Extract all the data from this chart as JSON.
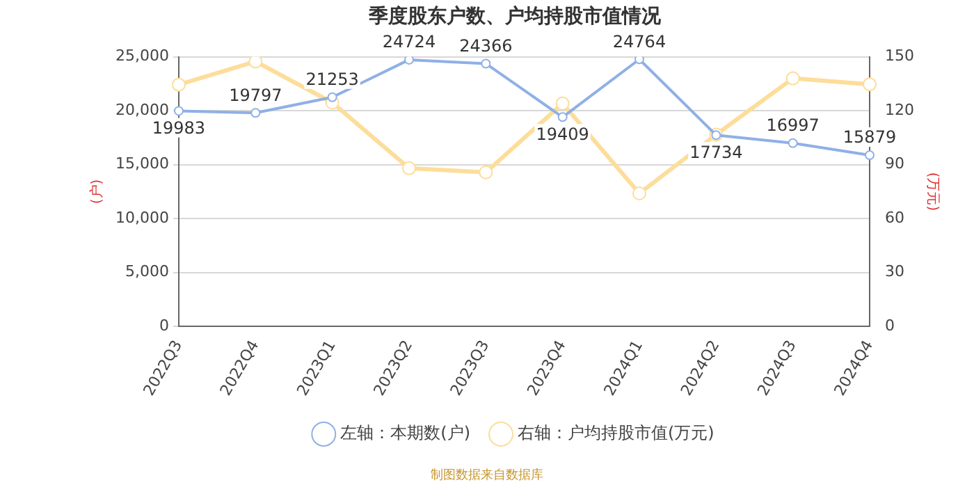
{
  "chart_data": {
    "type": "line",
    "title": "季度股东户数、户均持股市值情况",
    "ylabel": "(户)",
    "y2label": "(万元)",
    "categories": [
      "2022Q3",
      "2022Q4",
      "2023Q1",
      "2023Q2",
      "2023Q3",
      "2023Q4",
      "2024Q1",
      "2024Q2",
      "2024Q3",
      "2024Q4"
    ],
    "series": [
      {
        "name": "左轴：本期数(户)",
        "color": "#8fb0e6",
        "values": [
          19983,
          19797,
          21253,
          24724,
          24366,
          19409,
          24764,
          17734,
          16997,
          15879
        ],
        "value_labels": [
          "19983",
          "19797",
          "21253",
          "24724",
          "24366",
          "19409",
          "24764",
          "17734",
          "16997",
          "15879"
        ]
      },
      {
        "name": "右轴：户均持股市值(万元)",
        "color": "#fddd9a",
        "axis": "y2",
        "values": [
          134.5,
          147.4,
          124.5,
          88,
          85.7,
          124,
          74,
          106.7,
          138,
          134.7
        ]
      }
    ],
    "ylim": [
      0,
      25000
    ],
    "yticks": [
      {
        "value": 0,
        "label": "0"
      },
      {
        "value": 5000,
        "label": "5,000"
      },
      {
        "value": 10000,
        "label": "10,000"
      },
      {
        "value": 15000,
        "label": "15,000"
      },
      {
        "value": 20000,
        "label": "20,000"
      },
      {
        "value": 25000,
        "label": "25,000"
      }
    ],
    "y2lim": [
      0,
      150
    ],
    "y2ticks": [
      0,
      30,
      60,
      90,
      120,
      150
    ],
    "grid": "y",
    "legend": "bottom",
    "marker": "circle",
    "line_style": "solid",
    "annotations": [
      "制图数据来自数据库"
    ]
  }
}
